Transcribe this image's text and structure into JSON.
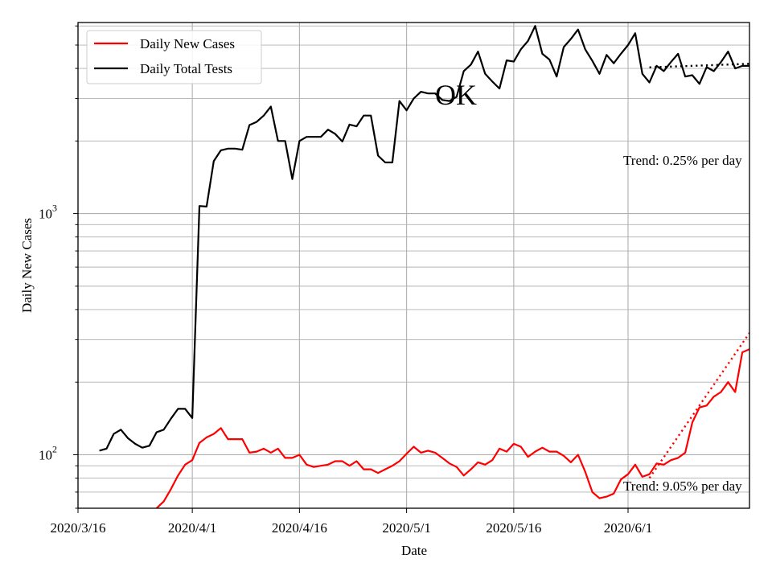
{
  "chart_data": {
    "type": "line",
    "title": "",
    "xlabel": "Date",
    "ylabel": "Daily New Cases",
    "y_scale": "log",
    "ylim": [
      60,
      6200
    ],
    "y_tick_labels": [
      {
        "value": 100,
        "base": "10",
        "exp": "2"
      },
      {
        "value": 1000,
        "base": "10",
        "exp": "3"
      }
    ],
    "x_tick_labels": [
      "2020/3/16",
      "2020/4/1",
      "2020/4/16",
      "2020/5/1",
      "2020/5/16",
      "2020/6/1"
    ],
    "x_tick_dates": [
      "2020-03-16",
      "2020-04-01",
      "2020-04-16",
      "2020-05-01",
      "2020-05-16",
      "2020-06-01"
    ],
    "xlim": [
      "2020-03-16",
      "2020-06-18"
    ],
    "grid": true,
    "legend_position": "top-left",
    "center_text": "OK",
    "series": [
      {
        "name": "Daily New Cases",
        "color": "#ff0000",
        "start_date": "2020-03-27",
        "values": [
          60,
          64,
          72,
          82,
          91,
          95,
          112,
          118,
          122,
          129,
          116,
          116,
          116,
          102,
          103,
          106,
          102,
          106,
          97,
          97,
          100,
          91,
          89,
          90,
          91,
          94,
          94,
          90,
          94,
          87,
          87,
          84,
          87,
          90,
          94,
          101,
          108,
          102,
          104,
          102,
          97,
          92,
          89,
          82,
          87,
          93,
          91,
          95,
          106,
          103,
          111,
          108,
          98,
          103,
          107,
          103,
          103,
          99,
          93,
          100,
          85,
          70,
          66,
          67,
          69,
          79,
          83,
          91,
          81,
          83,
          92,
          91,
          95,
          97,
          102,
          136,
          157,
          160,
          174,
          182,
          200,
          182,
          266,
          274,
          292,
          320
        ]
      },
      {
        "name": "Daily Total Tests",
        "color": "#000000",
        "start_date": "2020-03-19",
        "values": [
          104,
          106,
          122,
          127,
          117,
          111,
          107,
          109,
          124,
          127,
          141,
          155,
          155,
          142,
          1075,
          1070,
          1650,
          1830,
          1860,
          1860,
          1840,
          2330,
          2400,
          2550,
          2780,
          2000,
          2000,
          1390,
          2000,
          2080,
          2080,
          2080,
          2230,
          2140,
          1990,
          2340,
          2300,
          2550,
          2550,
          1740,
          1630,
          1630,
          2930,
          2680,
          3000,
          3200,
          3150,
          3150,
          2960,
          2930,
          3050,
          3900,
          4150,
          4700,
          3800,
          3530,
          3300,
          4320,
          4270,
          4800,
          5200,
          6000,
          4600,
          4350,
          3700,
          4900,
          5300,
          5800,
          4800,
          4300,
          3800,
          4550,
          4200,
          4600,
          5000,
          5600,
          3800,
          3500,
          4100,
          3900,
          4250,
          4600,
          3700,
          3750,
          3450,
          4050,
          3900,
          4250,
          4700,
          4000,
          4100,
          4100,
          4000,
          4600
        ]
      },
      {
        "name": "Trend: 9.05% per day",
        "style": "dotted",
        "color": "#ff0000",
        "start_date": "2020-06-04",
        "values": [
          80,
          320
        ]
      },
      {
        "name": "Trend: 0.25% per day",
        "style": "dotted",
        "color": "#000000",
        "start_date": "2020-06-04",
        "values": [
          4040,
          4180
        ]
      }
    ],
    "annotations": [
      "Trend: 0.25% per day",
      "Trend: 9.05% per day"
    ]
  }
}
